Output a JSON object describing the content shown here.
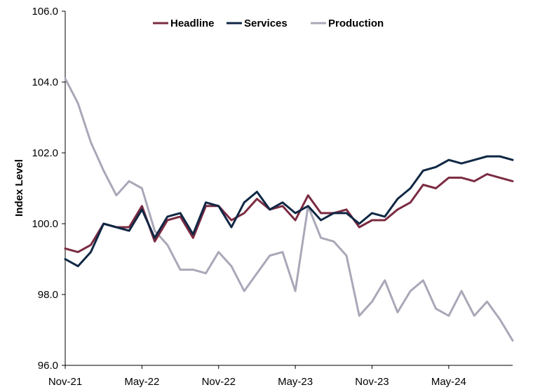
{
  "chart_data": {
    "type": "line",
    "title": "",
    "xlabel": "",
    "ylabel": "Index Level",
    "ylim": [
      96.0,
      106.0
    ],
    "yticks": [
      "96.0",
      "98.0",
      "100.0",
      "102.0",
      "104.0",
      "106.0"
    ],
    "ytick_values": [
      96,
      98,
      100,
      102,
      104,
      106
    ],
    "x": [
      "2021-11",
      "2021-12",
      "2022-01",
      "2022-02",
      "2022-03",
      "2022-04",
      "2022-05",
      "2022-06",
      "2022-07",
      "2022-08",
      "2022-09",
      "2022-10",
      "2022-11",
      "2022-12",
      "2023-01",
      "2023-02",
      "2023-03",
      "2023-04",
      "2023-05",
      "2023-06",
      "2023-07",
      "2023-08",
      "2023-09",
      "2023-10",
      "2023-11",
      "2023-12",
      "2024-01",
      "2024-02",
      "2024-03",
      "2024-04",
      "2024-05",
      "2024-06",
      "2024-07",
      "2024-08",
      "2024-09",
      "2024-10"
    ],
    "xticks": [
      "Nov-21",
      "May-22",
      "Nov-22",
      "May-23",
      "Nov-23",
      "May-24"
    ],
    "xtick_positions": [
      "2021-11",
      "2022-05",
      "2022-11",
      "2023-05",
      "2023-11",
      "2024-05"
    ],
    "grid": false,
    "legend_position": "top-center",
    "series": [
      {
        "name": "Headline",
        "color": "#7b2b42",
        "values": [
          99.3,
          99.2,
          99.4,
          100.0,
          99.9,
          99.9,
          100.5,
          99.5,
          100.1,
          100.2,
          99.6,
          100.5,
          100.5,
          100.1,
          100.3,
          100.7,
          100.4,
          100.5,
          100.1,
          100.8,
          100.3,
          100.3,
          100.4,
          99.9,
          100.1,
          100.1,
          100.4,
          100.6,
          101.1,
          101.0,
          101.3,
          101.3,
          101.2,
          101.4,
          101.3,
          101.2
        ]
      },
      {
        "name": "Services",
        "color": "#0f2744",
        "values": [
          99.0,
          98.8,
          99.2,
          100.0,
          99.9,
          99.8,
          100.4,
          99.6,
          100.2,
          100.3,
          99.7,
          100.6,
          100.5,
          99.9,
          100.6,
          100.9,
          100.4,
          100.6,
          100.3,
          100.5,
          100.1,
          100.3,
          100.3,
          100.0,
          100.3,
          100.2,
          100.7,
          101.0,
          101.5,
          101.6,
          101.8,
          101.7,
          101.8,
          101.9,
          101.9,
          101.8
        ]
      },
      {
        "name": "Production",
        "color": "#a9a8b8",
        "values": [
          104.1,
          103.4,
          102.3,
          101.5,
          100.8,
          101.2,
          101.0,
          99.8,
          99.4,
          98.7,
          98.7,
          98.6,
          99.2,
          98.8,
          98.1,
          98.6,
          99.1,
          99.2,
          98.1,
          100.5,
          99.6,
          99.5,
          99.1,
          97.4,
          97.8,
          98.4,
          97.5,
          98.1,
          98.4,
          97.6,
          97.4,
          98.1,
          97.4,
          97.8,
          97.3,
          96.7
        ]
      }
    ]
  }
}
